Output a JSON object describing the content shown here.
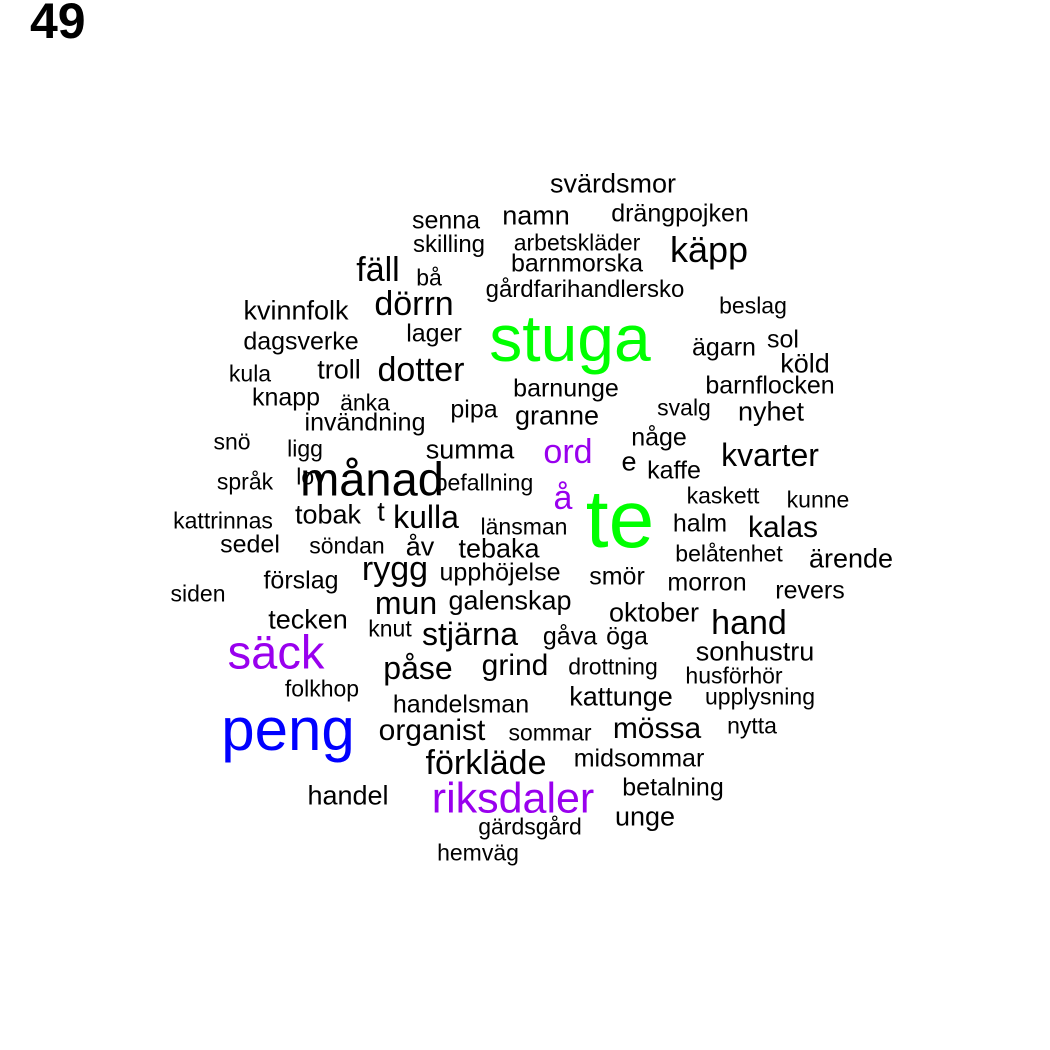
{
  "page_number": "49",
  "colors": {
    "black": "#000000",
    "green": "#00ff00",
    "blue": "#0000ff",
    "purple": "#9900ee"
  },
  "words": [
    {
      "text": "svärdsmor",
      "color": "#000000"
    },
    {
      "text": "namn",
      "color": "#000000"
    },
    {
      "text": "drängpojken",
      "color": "#000000"
    },
    {
      "text": "senna",
      "color": "#000000"
    },
    {
      "text": "skilling",
      "color": "#000000"
    },
    {
      "text": "arbetskläder",
      "color": "#000000"
    },
    {
      "text": "käpp",
      "color": "#000000"
    },
    {
      "text": "fäll",
      "color": "#000000"
    },
    {
      "text": "bå",
      "color": "#000000"
    },
    {
      "text": "barnmorska",
      "color": "#000000"
    },
    {
      "text": "gårdfarihandlersko",
      "color": "#000000"
    },
    {
      "text": "dörrn",
      "color": "#000000"
    },
    {
      "text": "kvinnfolk",
      "color": "#000000"
    },
    {
      "text": "beslag",
      "color": "#000000"
    },
    {
      "text": "stuga",
      "color": "#00ff00"
    },
    {
      "text": "dagsverke",
      "color": "#000000"
    },
    {
      "text": "lager",
      "color": "#000000"
    },
    {
      "text": "ägarn",
      "color": "#000000"
    },
    {
      "text": "sol",
      "color": "#000000"
    },
    {
      "text": "köld",
      "color": "#000000"
    },
    {
      "text": "kula",
      "color": "#000000"
    },
    {
      "text": "troll",
      "color": "#000000"
    },
    {
      "text": "dotter",
      "color": "#000000"
    },
    {
      "text": "barnunge",
      "color": "#000000"
    },
    {
      "text": "barnflocken",
      "color": "#000000"
    },
    {
      "text": "knapp",
      "color": "#000000"
    },
    {
      "text": "änka",
      "color": "#000000"
    },
    {
      "text": "pipa",
      "color": "#000000"
    },
    {
      "text": "granne",
      "color": "#000000"
    },
    {
      "text": "svalg",
      "color": "#000000"
    },
    {
      "text": "nyhet",
      "color": "#000000"
    },
    {
      "text": "invändning",
      "color": "#000000"
    },
    {
      "text": "snö",
      "color": "#000000"
    },
    {
      "text": "ligg",
      "color": "#000000"
    },
    {
      "text": "summa",
      "color": "#000000"
    },
    {
      "text": "någe",
      "color": "#000000"
    },
    {
      "text": "kvarter",
      "color": "#000000"
    },
    {
      "text": "månad",
      "color": "#000000"
    },
    {
      "text": "ord",
      "color": "#9900ee"
    },
    {
      "text": "e",
      "color": "#000000"
    },
    {
      "text": "kaffe",
      "color": "#000000"
    },
    {
      "text": "språk",
      "color": "#000000"
    },
    {
      "text": "lov",
      "color": "#000000"
    },
    {
      "text": "befallning",
      "color": "#000000"
    },
    {
      "text": "å",
      "color": "#9900ee"
    },
    {
      "text": "te",
      "color": "#00ff00"
    },
    {
      "text": "kaskett",
      "color": "#000000"
    },
    {
      "text": "kunne",
      "color": "#000000"
    },
    {
      "text": "tobak",
      "color": "#000000"
    },
    {
      "text": "t",
      "color": "#000000"
    },
    {
      "text": "kulla",
      "color": "#000000"
    },
    {
      "text": "kattrinnas",
      "color": "#000000"
    },
    {
      "text": "länsman",
      "color": "#000000"
    },
    {
      "text": "halm",
      "color": "#000000"
    },
    {
      "text": "kalas",
      "color": "#000000"
    },
    {
      "text": "sedel",
      "color": "#000000"
    },
    {
      "text": "söndan",
      "color": "#000000"
    },
    {
      "text": "åv",
      "color": "#000000"
    },
    {
      "text": "tebaka",
      "color": "#000000"
    },
    {
      "text": "belåtenhet",
      "color": "#000000"
    },
    {
      "text": "ärende",
      "color": "#000000"
    },
    {
      "text": "rygg",
      "color": "#000000"
    },
    {
      "text": "upphöjelse",
      "color": "#000000"
    },
    {
      "text": "smör",
      "color": "#000000"
    },
    {
      "text": "förslag",
      "color": "#000000"
    },
    {
      "text": "morron",
      "color": "#000000"
    },
    {
      "text": "siden",
      "color": "#000000"
    },
    {
      "text": "revers",
      "color": "#000000"
    },
    {
      "text": "mun",
      "color": "#000000"
    },
    {
      "text": "galenskap",
      "color": "#000000"
    },
    {
      "text": "oktober",
      "color": "#000000"
    },
    {
      "text": "tecken",
      "color": "#000000"
    },
    {
      "text": "hand",
      "color": "#000000"
    },
    {
      "text": "knut",
      "color": "#000000"
    },
    {
      "text": "stjärna",
      "color": "#000000"
    },
    {
      "text": "gåva",
      "color": "#000000"
    },
    {
      "text": "öga",
      "color": "#000000"
    },
    {
      "text": "säck",
      "color": "#9900ee"
    },
    {
      "text": "sonhustru",
      "color": "#000000"
    },
    {
      "text": "påse",
      "color": "#000000"
    },
    {
      "text": "grind",
      "color": "#000000"
    },
    {
      "text": "drottning",
      "color": "#000000"
    },
    {
      "text": "husförhör",
      "color": "#000000"
    },
    {
      "text": "folkhop",
      "color": "#000000"
    },
    {
      "text": "kattunge",
      "color": "#000000"
    },
    {
      "text": "upplysning",
      "color": "#000000"
    },
    {
      "text": "handelsman",
      "color": "#000000"
    },
    {
      "text": "peng",
      "color": "#0000ff"
    },
    {
      "text": "organist",
      "color": "#000000"
    },
    {
      "text": "sommar",
      "color": "#000000"
    },
    {
      "text": "mössa",
      "color": "#000000"
    },
    {
      "text": "nytta",
      "color": "#000000"
    },
    {
      "text": "förkläde",
      "color": "#000000"
    },
    {
      "text": "midsommar",
      "color": "#000000"
    },
    {
      "text": "handel",
      "color": "#000000"
    },
    {
      "text": "riksdaler",
      "color": "#9900ee"
    },
    {
      "text": "betalning",
      "color": "#000000"
    },
    {
      "text": "unge",
      "color": "#000000"
    },
    {
      "text": "gärdsgård",
      "color": "#000000"
    },
    {
      "text": "hemväg",
      "color": "#000000"
    }
  ]
}
